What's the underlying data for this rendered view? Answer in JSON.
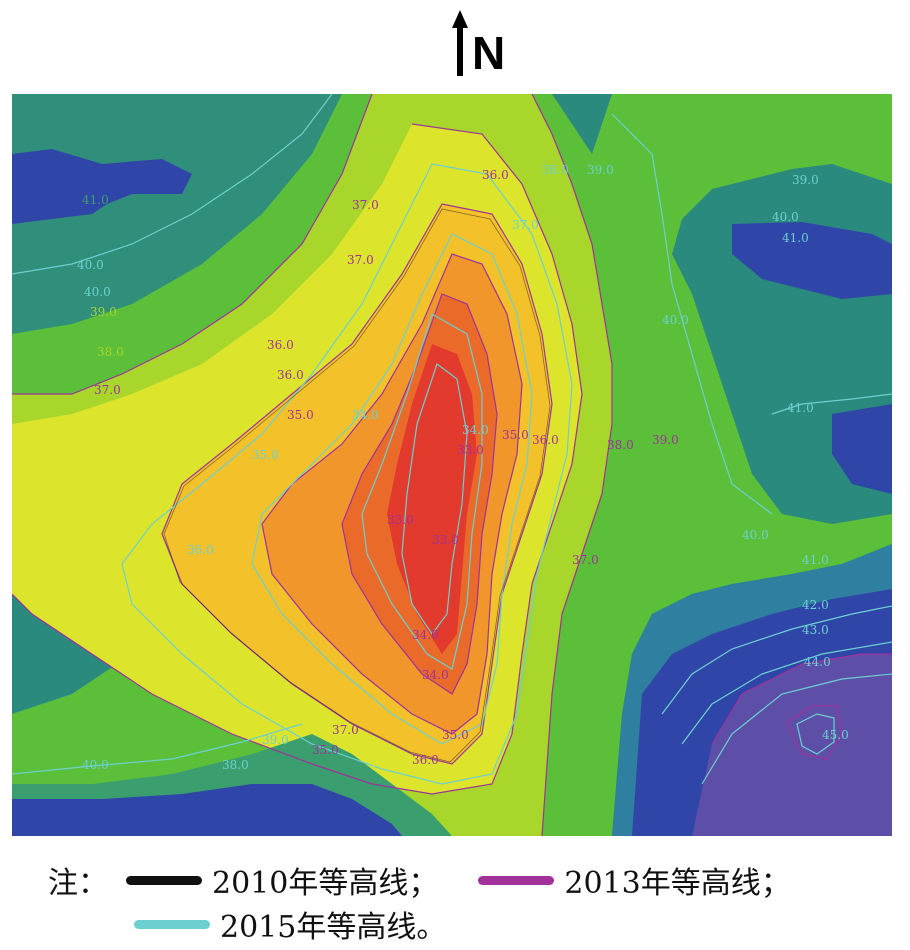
{
  "north": {
    "label": "N",
    "icon": "north-arrow-icon"
  },
  "contour_labels": {
    "lbl_41a": "41.0",
    "lbl_40a": "40.0",
    "lbl_40b": "40.0",
    "lbl_39a": "39.0",
    "lbl_38a": "38.0",
    "lbl_37a": "37.0",
    "lbl_37b": "37.0",
    "lbl_37c": "37.0",
    "lbl_36a": "36.0",
    "lbl_36b": "36.0",
    "lbl_36c": "36.0",
    "lbl_36d": "36.0",
    "lbl_36e": "36.0",
    "lbl_35a": "35.0",
    "lbl_35b": "35.0",
    "lbl_35c": "35.0",
    "lbl_35d": "35.0",
    "lbl_34a": "34.0",
    "lbl_34b": "34.0",
    "lbl_34c": "34.0",
    "lbl_34d": "34.0",
    "lbl_33a": "33.0",
    "lbl_33b": "33.0",
    "lbl_33c": "33.0",
    "lbl_37d": "37.0",
    "lbl_37e": "37.0",
    "lbl_38b": "38.0",
    "lbl_38c": "38.0",
    "lbl_39b": "39.0",
    "lbl_39c": "39.0",
    "lbl_39d": "39.0",
    "lbl_40c": "40.0",
    "lbl_40d": "40.0",
    "lbl_40e": "40.0",
    "lbl_41b": "41.0",
    "lbl_41c": "41.0",
    "lbl_41d": "41.0",
    "lbl_42a": "42.0",
    "lbl_43a": "43.0",
    "lbl_44a": "44.0",
    "lbl_45a": "45.0",
    "lbl_38d": "38.0",
    "lbl_39e": "39.0",
    "lbl_40f": "40.0",
    "lbl_37f": "37.0",
    "lbl_36f": "36.0",
    "lbl_35e": "35.0"
  },
  "legend": {
    "prefix": "注：",
    "item_2010": "2010年等高线；",
    "item_2013": "2013年等高线；",
    "item_2015": "2015年等高线。",
    "color_2010": "#111111",
    "color_2013": "#a0329a",
    "color_2015": "#6cd0d0"
  },
  "palette": {
    "deep_violet": "#5d4fa8",
    "blue": "#3045a8",
    "dark_teal": "#2a8a7e",
    "teal_green": "#3a9e6e",
    "green": "#5cbf3a",
    "yellow_green": "#a8d62a",
    "yellow": "#dce52c",
    "gold": "#f3c22a",
    "orange": "#f0962a",
    "dark_orange": "#ea6a2a",
    "red": "#e23a2c"
  }
}
